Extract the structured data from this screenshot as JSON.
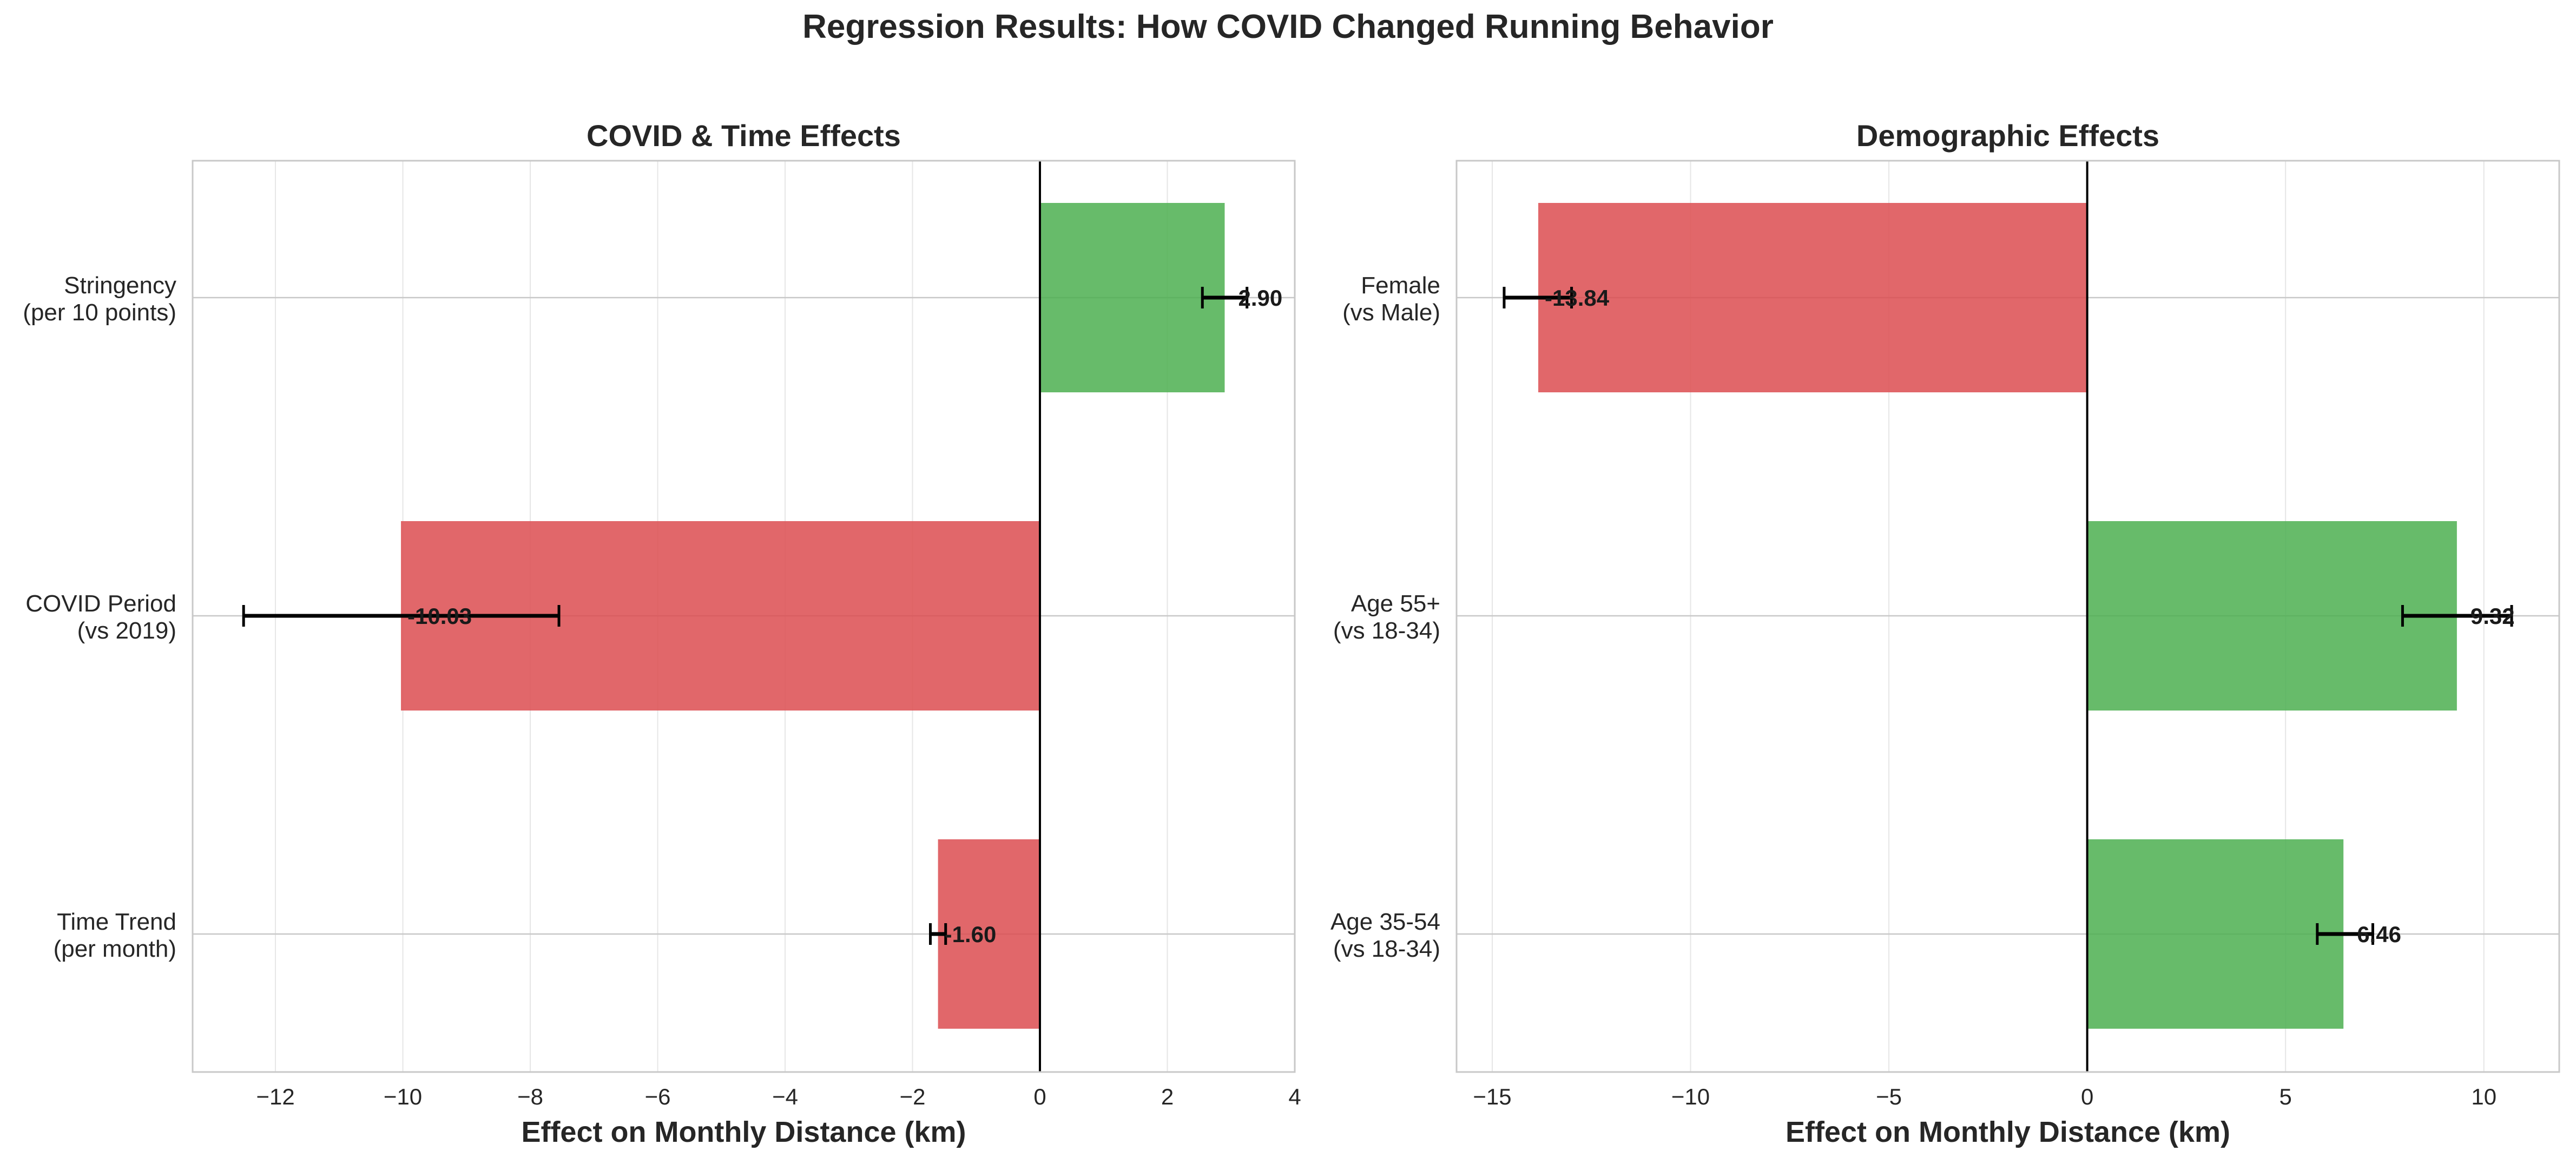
{
  "title": "Regression Results: How COVID Changed Running Behavior",
  "colors": {
    "negative": "#dc4c50",
    "positive": "#4caf50",
    "grid": "#e6e6e6",
    "frame": "#c8c8c8",
    "zero_line": "#000000",
    "error_bar": "#000000"
  },
  "chart_data": [
    {
      "type": "bar",
      "orientation": "horizontal",
      "title": "COVID & Time Effects",
      "xlabel": "Effect on Monthly Distance (km)",
      "ylabel": "",
      "xlim": [
        -13.3,
        4
      ],
      "xticks": [
        -12,
        -10,
        -8,
        -6,
        -4,
        -2,
        0,
        2,
        4
      ],
      "xtick_labels": [
        "−12",
        "−10",
        "−8",
        "−6",
        "−4",
        "−2",
        "0",
        "2",
        "4"
      ],
      "grid": true,
      "categories": [
        [
          "Stringency",
          "(per 10 points)"
        ],
        [
          "COVID Period",
          "(vs 2019)"
        ],
        [
          "Time Trend",
          "(per month)"
        ]
      ],
      "values": [
        2.9,
        -10.03,
        -1.6
      ],
      "ci": [
        [
          2.55,
          3.25
        ],
        [
          -12.5,
          -7.55
        ],
        [
          -1.72,
          -1.48
        ]
      ],
      "value_labels": [
        "2.90",
        "-10.03",
        "-1.60"
      ]
    },
    {
      "type": "bar",
      "orientation": "horizontal",
      "title": "Demographic Effects",
      "xlabel": "Effect on Monthly Distance (km)",
      "ylabel": "",
      "xlim": [
        -15.9,
        11.9
      ],
      "xticks": [
        -15,
        -10,
        -5,
        0,
        5,
        10
      ],
      "xtick_labels": [
        "−15",
        "−10",
        "−5",
        "0",
        "5",
        "10"
      ],
      "grid": true,
      "categories": [
        [
          "Female",
          "(vs Male)"
        ],
        [
          "Age 55+",
          "(vs 18-34)"
        ],
        [
          "Age 35-54",
          "(vs 18-34)"
        ]
      ],
      "values": [
        -13.84,
        9.32,
        6.46
      ],
      "ci": [
        [
          -14.7,
          -13.0
        ],
        [
          7.95,
          10.7
        ],
        [
          5.8,
          7.2
        ]
      ],
      "value_labels": [
        "-13.84",
        "9.32",
        "6.46"
      ]
    }
  ]
}
